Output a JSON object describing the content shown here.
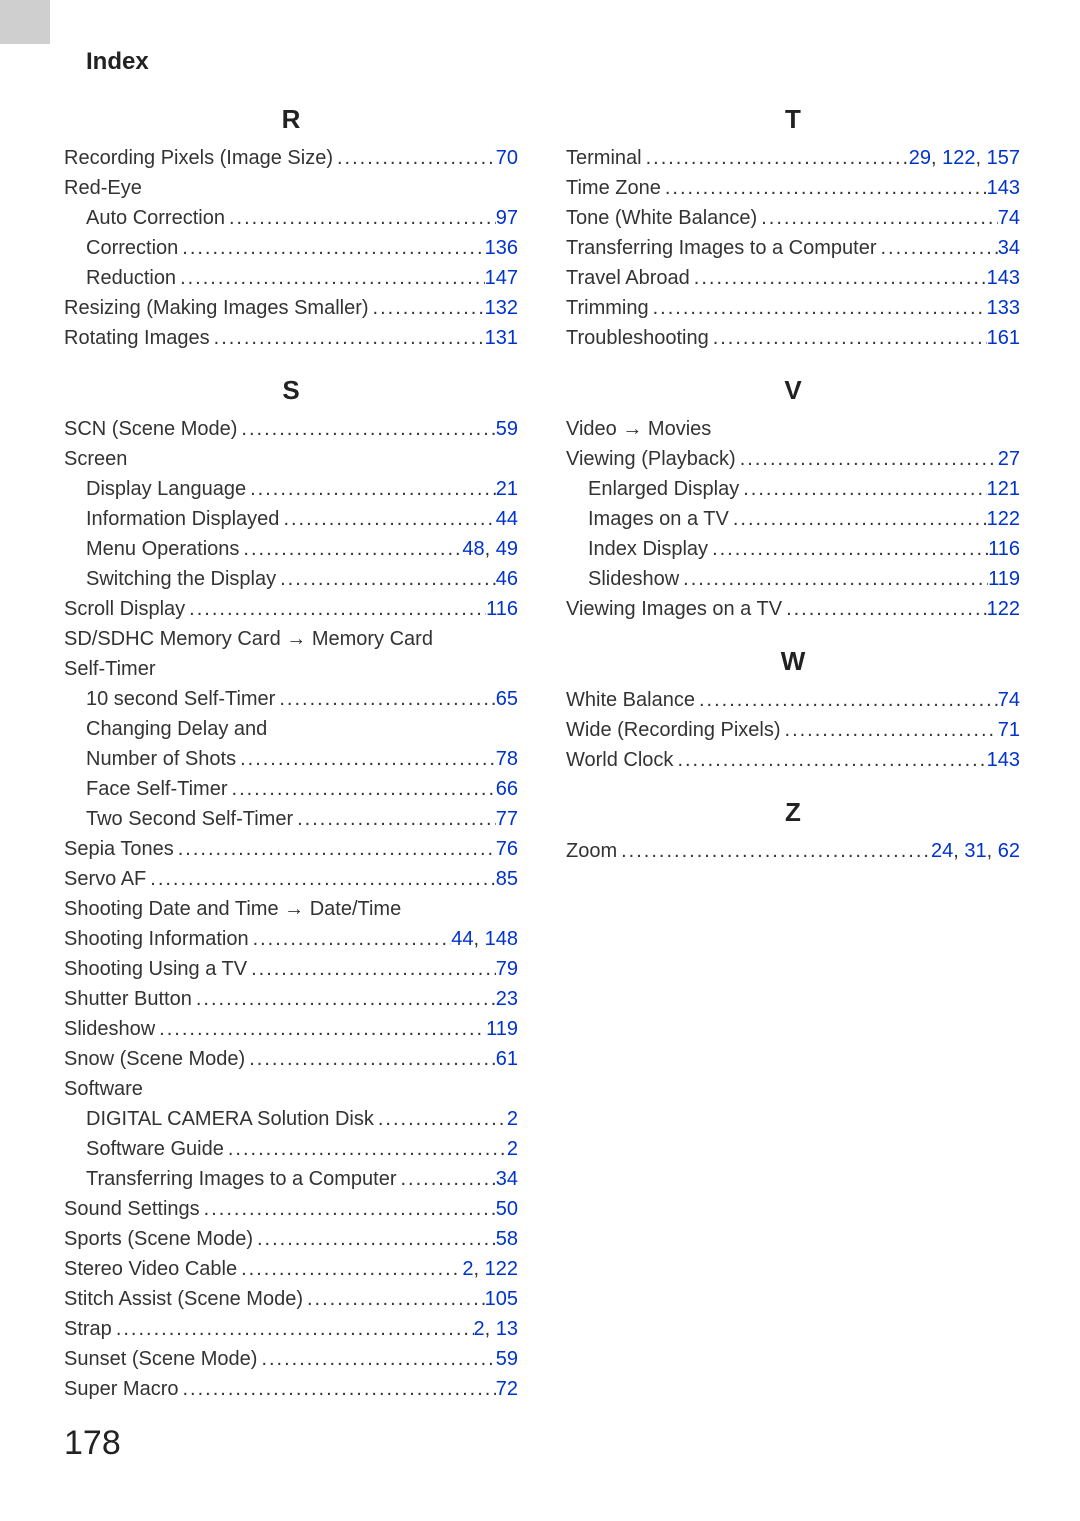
{
  "header": "Index",
  "page_number": "178",
  "link_color": "#0033cc",
  "text_color": "#333333",
  "font_size_body": 20,
  "font_size_letter": 26,
  "font_size_header": 24,
  "columns": [
    {
      "sections": [
        {
          "letter": "R",
          "entries": [
            {
              "label": "Recording Pixels (Image Size)",
              "pages": [
                "70"
              ]
            },
            {
              "label": "Red-Eye",
              "pages": []
            },
            {
              "label": "Auto Correction",
              "pages": [
                "97"
              ],
              "sub": true
            },
            {
              "label": "Correction",
              "pages": [
                "136"
              ],
              "sub": true
            },
            {
              "label": "Reduction",
              "pages": [
                "147"
              ],
              "sub": true
            },
            {
              "label": "Resizing (Making Images Smaller)",
              "pages": [
                "132"
              ]
            },
            {
              "label": "Rotating Images",
              "pages": [
                "131"
              ]
            }
          ]
        },
        {
          "letter": "S",
          "entries": [
            {
              "label": "SCN (Scene Mode)",
              "pages": [
                "59"
              ]
            },
            {
              "label": "Screen",
              "pages": []
            },
            {
              "label": "Display Language",
              "pages": [
                "21"
              ],
              "sub": true
            },
            {
              "label": "Information Displayed",
              "pages": [
                "44"
              ],
              "sub": true
            },
            {
              "label": "Menu Operations",
              "pages": [
                "48",
                "49"
              ],
              "sub": true
            },
            {
              "label": "Switching the Display",
              "pages": [
                "46"
              ],
              "sub": true
            },
            {
              "label": "Scroll Display",
              "pages": [
                "116"
              ]
            },
            {
              "label": "SD/SDHC Memory Card → Memory Card",
              "pages": []
            },
            {
              "label": "Self-Timer",
              "pages": []
            },
            {
              "label": "10 second Self-Timer",
              "pages": [
                "65"
              ],
              "sub": true
            },
            {
              "label": "Changing Delay and",
              "pages": [],
              "sub": true
            },
            {
              "label": "Number of Shots",
              "pages": [
                "78"
              ],
              "sub": true
            },
            {
              "label": "Face Self-Timer",
              "pages": [
                "66"
              ],
              "sub": true
            },
            {
              "label": "Two Second Self-Timer",
              "pages": [
                "77"
              ],
              "sub": true
            },
            {
              "label": "Sepia Tones",
              "pages": [
                "76"
              ]
            },
            {
              "label": "Servo AF",
              "pages": [
                "85"
              ]
            },
            {
              "label": "Shooting Date and Time → Date/Time",
              "pages": []
            },
            {
              "label": "Shooting Information",
              "pages": [
                "44",
                "148"
              ]
            },
            {
              "label": "Shooting Using a TV",
              "pages": [
                "79"
              ]
            },
            {
              "label": "Shutter Button",
              "pages": [
                "23"
              ]
            },
            {
              "label": "Slideshow",
              "pages": [
                "119"
              ]
            },
            {
              "label": "Snow (Scene Mode)",
              "pages": [
                "61"
              ]
            },
            {
              "label": "Software",
              "pages": []
            },
            {
              "label": "DIGITAL CAMERA Solution Disk",
              "pages": [
                "2"
              ],
              "sub": true
            },
            {
              "label": "Software Guide",
              "pages": [
                "2"
              ],
              "sub": true
            },
            {
              "label": "Transferring Images to a Computer",
              "pages": [
                "34"
              ],
              "sub": true
            },
            {
              "label": "Sound Settings",
              "pages": [
                "50"
              ]
            },
            {
              "label": "Sports (Scene Mode)",
              "pages": [
                "58"
              ]
            },
            {
              "label": "Stereo Video Cable",
              "pages": [
                "2",
                "122"
              ]
            },
            {
              "label": "Stitch Assist (Scene Mode)",
              "pages": [
                "105"
              ]
            },
            {
              "label": "Strap",
              "pages": [
                "2",
                "13"
              ]
            },
            {
              "label": "Sunset (Scene Mode)",
              "pages": [
                "59"
              ]
            },
            {
              "label": "Super Macro",
              "pages": [
                "72"
              ]
            }
          ]
        }
      ]
    },
    {
      "sections": [
        {
          "letter": "T",
          "entries": [
            {
              "label": "Terminal",
              "pages": [
                "29",
                "122",
                "157"
              ]
            },
            {
              "label": "Time Zone",
              "pages": [
                "143"
              ]
            },
            {
              "label": "Tone (White Balance)",
              "pages": [
                "74"
              ]
            },
            {
              "label": "Transferring Images to a Computer",
              "pages": [
                "34"
              ]
            },
            {
              "label": "Travel Abroad",
              "pages": [
                "143"
              ]
            },
            {
              "label": "Trimming",
              "pages": [
                "133"
              ]
            },
            {
              "label": "Troubleshooting",
              "pages": [
                "161"
              ]
            }
          ]
        },
        {
          "letter": "V",
          "entries": [
            {
              "label": "Video → Movies",
              "pages": []
            },
            {
              "label": "Viewing (Playback)",
              "pages": [
                "27"
              ]
            },
            {
              "label": "Enlarged Display",
              "pages": [
                "121"
              ],
              "sub": true
            },
            {
              "label": "Images on a TV",
              "pages": [
                "122"
              ],
              "sub": true
            },
            {
              "label": "Index Display",
              "pages": [
                "116"
              ],
              "sub": true
            },
            {
              "label": "Slideshow",
              "pages": [
                "119"
              ],
              "sub": true
            },
            {
              "label": "Viewing Images on a TV",
              "pages": [
                "122"
              ]
            }
          ]
        },
        {
          "letter": "W",
          "entries": [
            {
              "label": "White Balance",
              "pages": [
                "74"
              ]
            },
            {
              "label": "Wide (Recording Pixels)",
              "pages": [
                "71"
              ]
            },
            {
              "label": "World Clock",
              "pages": [
                "143"
              ]
            }
          ]
        },
        {
          "letter": "Z",
          "entries": [
            {
              "label": "Zoom",
              "pages": [
                "24",
                "31",
                "62"
              ]
            }
          ]
        }
      ]
    }
  ]
}
